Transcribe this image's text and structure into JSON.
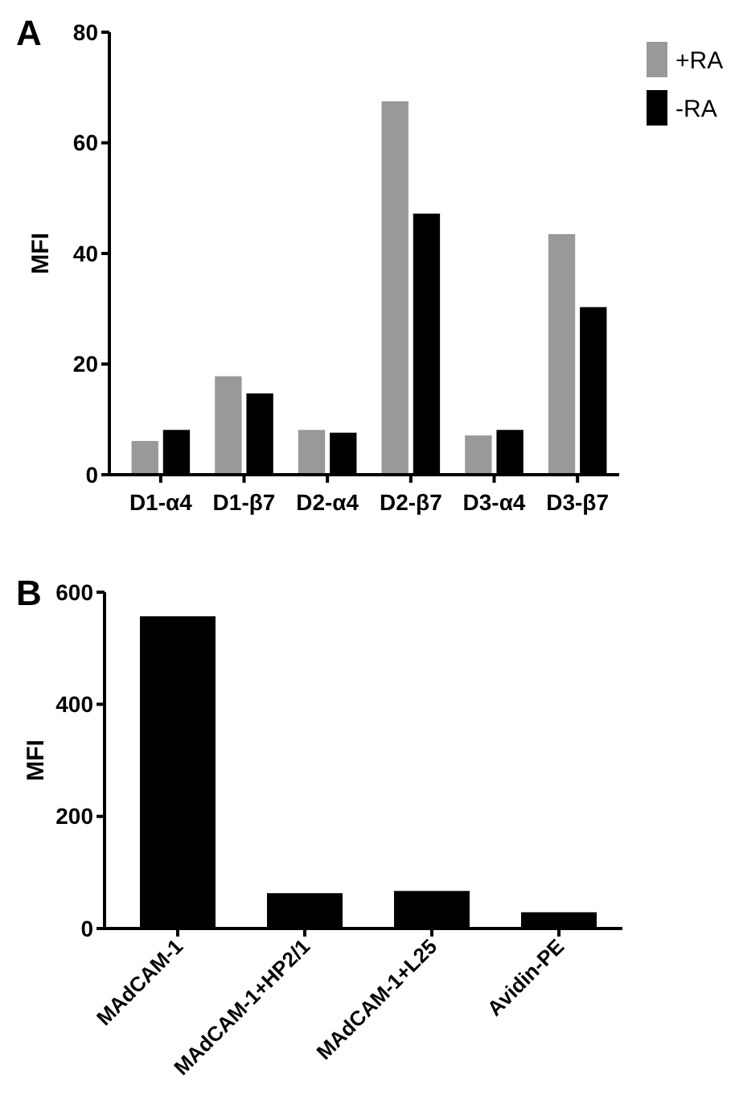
{
  "chart_data": [
    {
      "type": "bar",
      "title": "A",
      "ylabel": "MFI",
      "categories": [
        "D1-α4",
        "D1-β7",
        "D2-α4",
        "D2-β7",
        "D3-α4",
        "D3-β7"
      ],
      "series": [
        {
          "name": "+RA",
          "color": "#999999",
          "values": [
            6.1,
            17.8,
            8.1,
            67.5,
            7.1,
            43.5
          ]
        },
        {
          "name": "-RA",
          "color": "#000000",
          "values": [
            8.1,
            14.7,
            7.6,
            47.2,
            8.1,
            30.3
          ]
        }
      ],
      "ylim": [
        0,
        80
      ],
      "yticks": [
        0,
        20,
        40,
        60,
        80
      ],
      "legend": "top right",
      "grid": false
    },
    {
      "type": "bar",
      "title": "B",
      "ylabel": "MFI",
      "categories": [
        "MAdCAM-1",
        "MAdCAM-1+HP2/1",
        "MAdCAM-1+L25",
        "Avidin-PE"
      ],
      "series": [
        {
          "color": "#000000",
          "values": [
            557,
            63,
            67,
            29
          ]
        }
      ],
      "ylim": [
        0,
        600
      ],
      "yticks": [
        0,
        200,
        400,
        600
      ],
      "grid": false
    }
  ]
}
